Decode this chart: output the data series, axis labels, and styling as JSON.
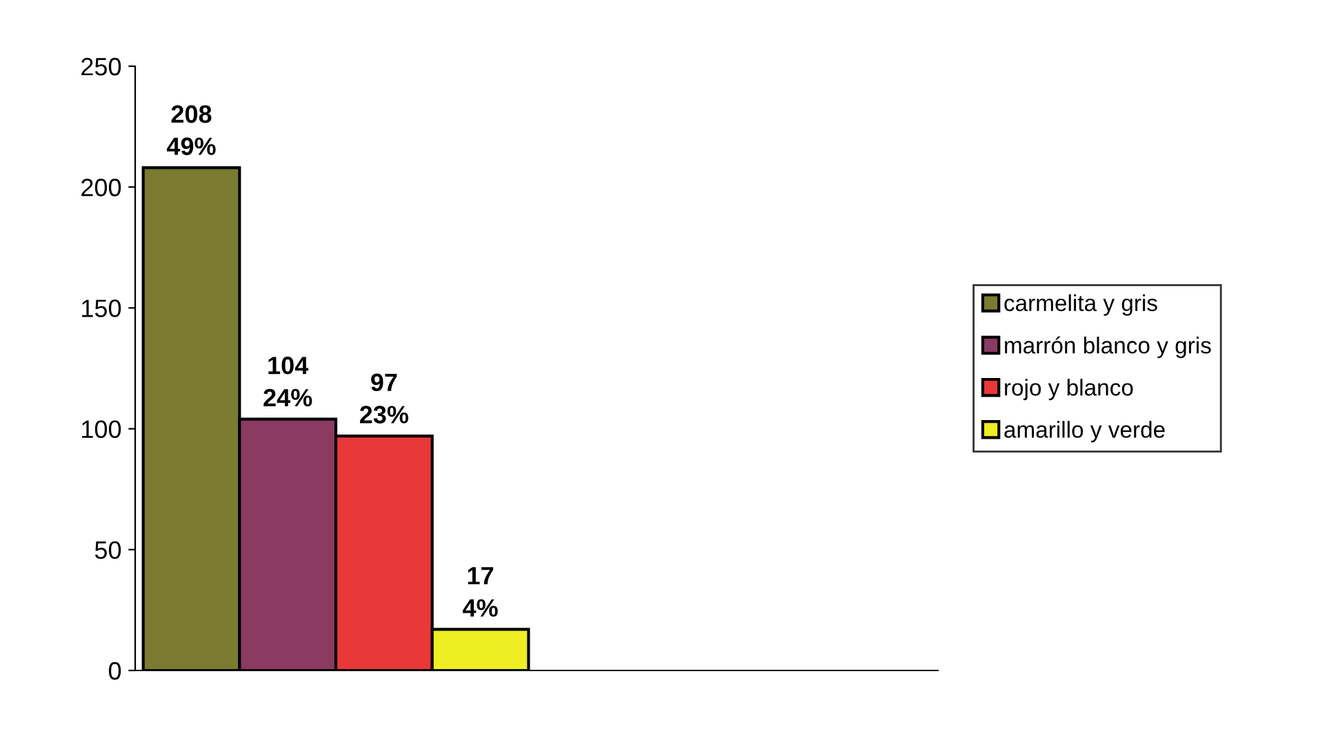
{
  "chart_data": {
    "type": "bar",
    "categories": [
      null,
      null
    ],
    "series": [
      {
        "name": "carmelita y gris",
        "color": "#7a7a30",
        "values": [
          208,
          null
        ],
        "value_labels": [
          "208\n49%",
          null
        ]
      },
      {
        "name": "marrón blanco y gris",
        "color": "#8b3a62",
        "values": [
          104,
          null
        ],
        "value_labels": [
          "104\n24%",
          null
        ]
      },
      {
        "name": "rojo y blanco",
        "color": "#e83838",
        "values": [
          97,
          null
        ],
        "value_labels": [
          "97\n23%",
          null
        ]
      },
      {
        "name": "amarillo y verde",
        "color": "#eeee22",
        "values": [
          17,
          null
        ],
        "value_labels": [
          "17\n4%",
          null
        ]
      }
    ],
    "ylim": [
      0,
      250
    ],
    "yticks": [
      0,
      50,
      100,
      150,
      200,
      250
    ],
    "grid": false,
    "legend": "right"
  }
}
